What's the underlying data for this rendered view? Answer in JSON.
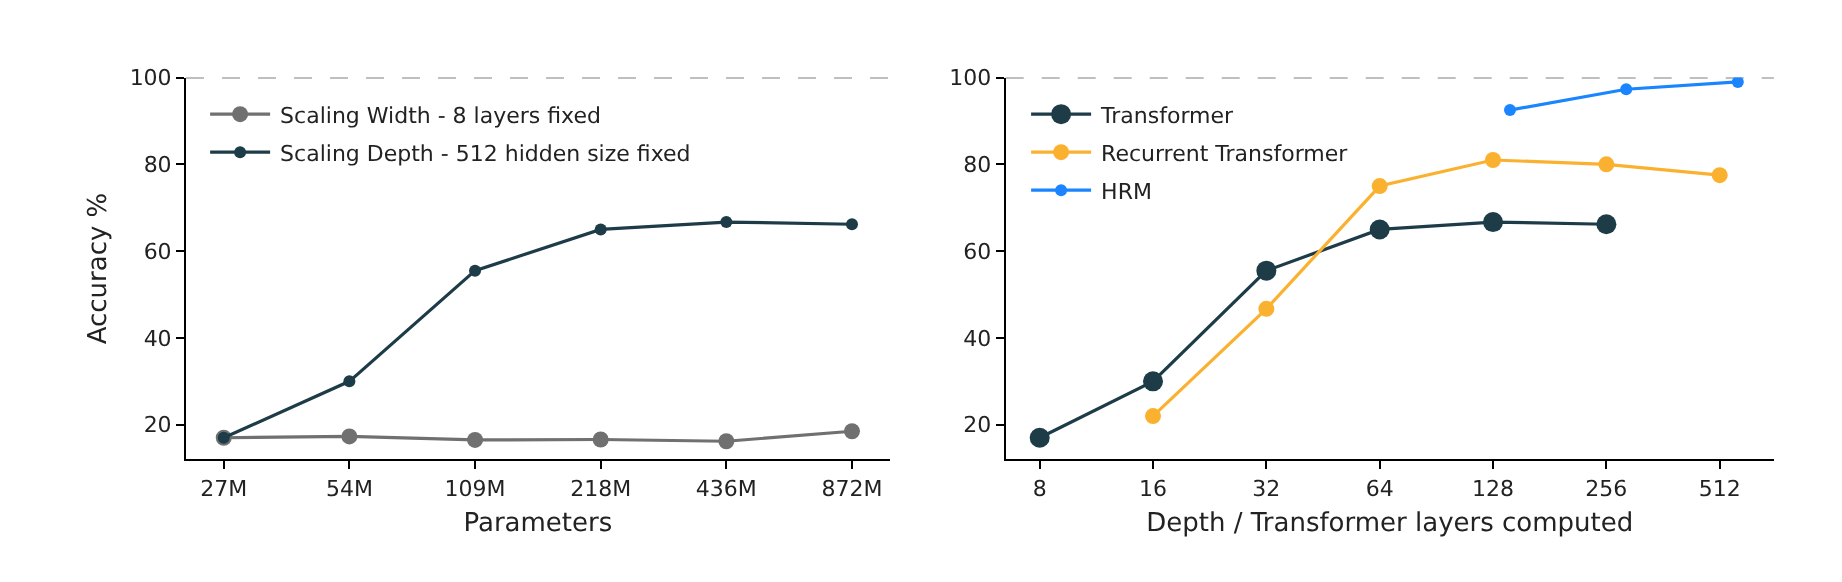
{
  "chart_data": [
    {
      "type": "line",
      "categories": [
        "27M",
        "54M",
        "109M",
        "218M",
        "436M",
        "872M"
      ],
      "xlabel": "Parameters",
      "ylabel": "Accuracy %",
      "ylim": [
        12,
        100
      ],
      "yticks": [
        20,
        40,
        60,
        80,
        100
      ],
      "grid": false,
      "legend": "top left",
      "marker": "circle",
      "line_style": "solid",
      "ref_lines": [
        {
          "axis": "y",
          "value": 100,
          "color": "#808080",
          "line_style": "dashed"
        }
      ],
      "series": [
        {
          "name": "Scaling Width - 8 layers fixed",
          "color": "#707070",
          "values": [
            17,
            17.3,
            16.5,
            16.6,
            16.2,
            18.5
          ]
        },
        {
          "name": "Scaling Depth - 512 hidden size fixed",
          "color": "#1d3c48",
          "values": [
            17,
            30,
            55.5,
            65,
            66.7,
            66.2
          ]
        }
      ]
    },
    {
      "type": "line",
      "xlabel": "Depth / Transformer layers computed",
      "log": "x",
      "xlim": [
        6.5,
        713
      ],
      "xticks": [
        8,
        16,
        32,
        64,
        128,
        256,
        512
      ],
      "ylim": [
        12,
        100
      ],
      "yticks": [
        20,
        40,
        60,
        80,
        100
      ],
      "grid": false,
      "legend": "top left",
      "marker": "circle",
      "line_style": "solid",
      "ref_lines": [
        {
          "axis": "y",
          "value": 100,
          "color": "#808080",
          "line_style": "dashed"
        }
      ],
      "series": [
        {
          "name": "Transformer",
          "color": "#1d3c48",
          "x": [
            8,
            16,
            32,
            64,
            128,
            256
          ],
          "values": [
            17,
            30,
            55.5,
            65,
            66.7,
            66.2
          ]
        },
        {
          "name": "Recurrent Transformer",
          "color": "#fbb130",
          "x": [
            16,
            32,
            64,
            128,
            256,
            512
          ],
          "values": [
            22,
            46.7,
            75,
            81,
            80,
            77.5
          ]
        },
        {
          "name": "HRM",
          "color": "#1a85ff",
          "x": [
            142,
            289,
            572
          ],
          "values": [
            92.5,
            97.3,
            99
          ]
        }
      ]
    }
  ]
}
